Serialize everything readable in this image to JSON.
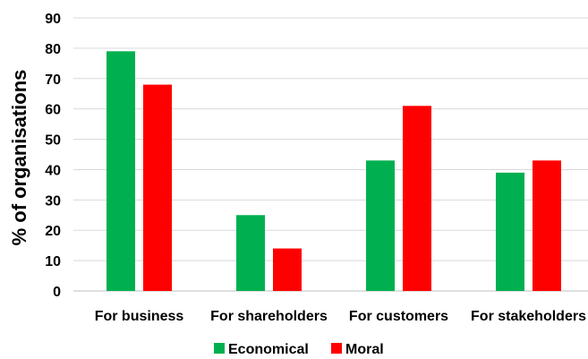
{
  "chart_data": {
    "type": "bar",
    "categories": [
      "For business",
      "For shareholders",
      "For customers",
      "For stakeholders"
    ],
    "series": [
      {
        "name": "Economical",
        "values": [
          79,
          25,
          43,
          39
        ],
        "color": "#00b050"
      },
      {
        "name": "Moral",
        "values": [
          68,
          14,
          61,
          43
        ],
        "color": "#ff0000"
      }
    ],
    "title": "",
    "xlabel": "",
    "ylabel": "% of organisations",
    "ylim": [
      0,
      90
    ],
    "yticks": [
      0,
      10,
      20,
      30,
      40,
      50,
      60,
      70,
      80,
      90
    ],
    "grid": true,
    "legend_position": "bottom"
  }
}
